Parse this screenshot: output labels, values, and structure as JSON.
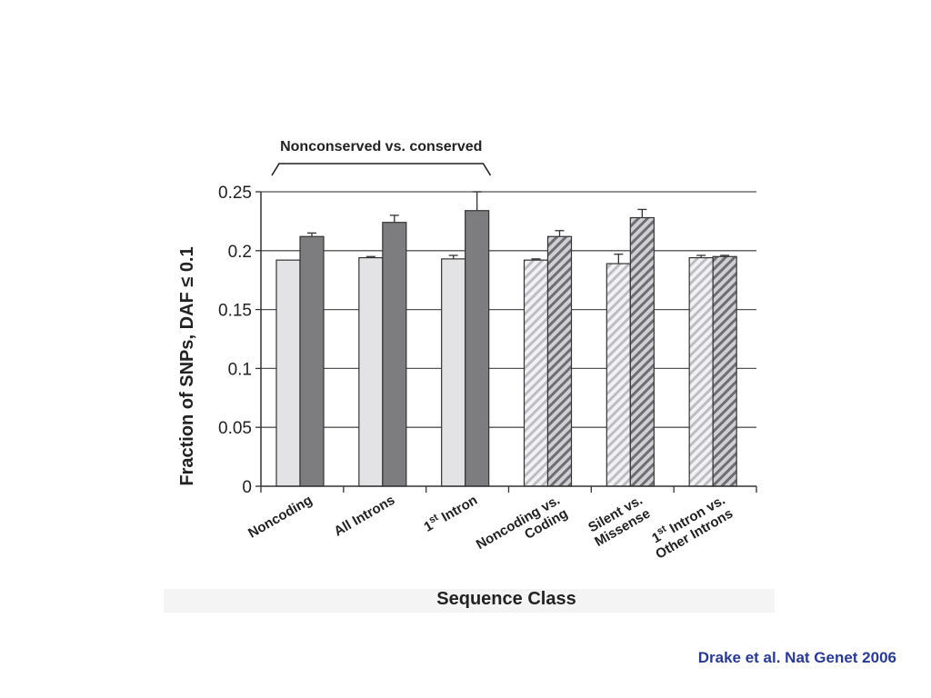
{
  "chart_data": {
    "type": "bar",
    "bracket_label": "Nonconserved vs. conserved",
    "xlabel": "Sequence Class",
    "ylabel": "Fraction of SNPs, DAF ≤ 0.1",
    "ylim": [
      0,
      0.25
    ],
    "yticks": [
      0,
      0.05,
      0.1,
      0.15,
      0.2,
      0.25
    ],
    "ytick_labels": [
      "0",
      "0.05",
      "0.1",
      "0.15",
      "0.2",
      "0.25"
    ],
    "grid": true,
    "categories": [
      {
        "lines": [
          [
            "Noncoding",
            null
          ]
        ]
      },
      {
        "lines": [
          [
            "All Introns",
            null
          ]
        ]
      },
      {
        "lines": [
          [
            "1",
            "st"
          ],
          [
            " Intron",
            null
          ]
        ]
      },
      {
        "lines": [
          [
            "Noncoding vs.",
            null
          ]
        ],
        "line2": "Coding"
      },
      {
        "lines": [
          [
            "Silent vs.",
            null
          ]
        ],
        "line2": "Missense"
      },
      {
        "lines": [
          [
            "1",
            "st"
          ],
          [
            " Intron vs.",
            null
          ]
        ],
        "line2": "Other Introns"
      }
    ],
    "bars": [
      {
        "value": 0.192,
        "error": 0.0,
        "colors": [
          "#e3e3e6",
          "#e3e3e6"
        ],
        "hatched": false
      },
      {
        "value": 0.212,
        "error": 0.003,
        "colors": [
          "#7d7d80",
          "#7d7d80"
        ],
        "hatched": false
      },
      {
        "value": 0.194,
        "error": 0.001,
        "colors": [
          "#e3e3e6",
          "#e3e3e6"
        ],
        "hatched": false
      },
      {
        "value": 0.224,
        "error": 0.006,
        "colors": [
          "#7d7d80",
          "#7d7d80"
        ],
        "hatched": false
      },
      {
        "value": 0.193,
        "error": 0.003,
        "colors": [
          "#e3e3e6",
          "#e3e3e6"
        ],
        "hatched": false
      },
      {
        "value": 0.234,
        "error": 0.016,
        "colors": [
          "#7d7d80",
          "#7d7d80"
        ],
        "hatched": false
      },
      {
        "value": 0.192,
        "error": 0.001,
        "colors": [
          "#f2f2f4",
          "#bdbdc2"
        ],
        "hatched": true
      },
      {
        "value": 0.212,
        "error": 0.005,
        "colors": [
          "#d0d0d4",
          "#6f6f73"
        ],
        "hatched": true
      },
      {
        "value": 0.189,
        "error": 0.008,
        "colors": [
          "#f2f2f4",
          "#bdbdc2"
        ],
        "hatched": true
      },
      {
        "value": 0.228,
        "error": 0.007,
        "colors": [
          "#d0d0d4",
          "#6f6f73"
        ],
        "hatched": true
      },
      {
        "value": 0.194,
        "error": 0.002,
        "colors": [
          "#f2f2f4",
          "#bdbdc2"
        ],
        "hatched": true
      },
      {
        "value": 0.195,
        "error": 0.001,
        "colors": [
          "#d0d0d4",
          "#6f6f73"
        ],
        "hatched": true
      }
    ]
  },
  "citation": "Drake et al. Nat Genet 2006"
}
